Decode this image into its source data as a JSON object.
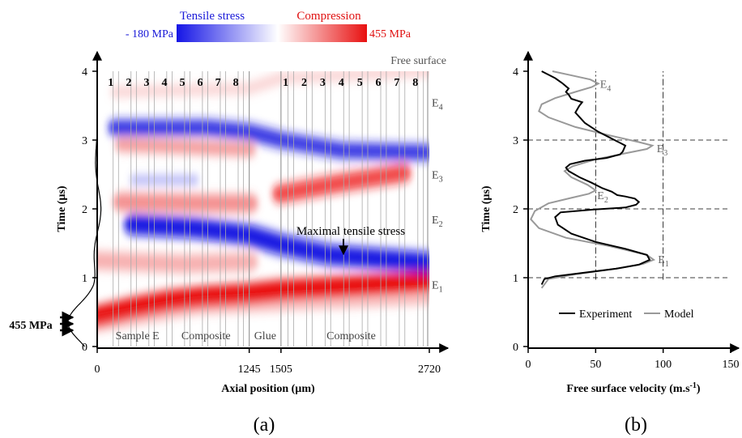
{
  "chart_data": [
    {
      "type": "heatmap",
      "panel_label": "(a)",
      "xlabel": "Axial position (µm)",
      "ylabel": "Time (µs)",
      "xlim": [
        0,
        2720
      ],
      "ylim": [
        0,
        4
      ],
      "x_ticks": [
        "0",
        "1245",
        "1505",
        "2720"
      ],
      "x_tick_values": [
        0,
        1245,
        1505,
        2720
      ],
      "y_ticks": [
        "0",
        "1",
        "2",
        "3",
        "4"
      ],
      "y_tick_values": [
        0,
        1,
        2,
        3,
        4
      ],
      "colorbar": {
        "min_label": "- 180 MPa",
        "max_label": "455 MPa",
        "tensile_label": "Tensile stress",
        "compression_label": "Compression",
        "min_value": -180,
        "max_value": 455,
        "tensile_color": "#1010e0",
        "compression_color": "#ee1010"
      },
      "layer_numbers": [
        "1",
        "2",
        "3",
        "4",
        "5",
        "6",
        "7",
        "8",
        "1",
        "2",
        "3",
        "4",
        "5",
        "6",
        "7",
        "8"
      ],
      "regions": [
        "Sample E",
        "Composite",
        "Glue",
        "Composite"
      ],
      "free_surface_label": "Free surface",
      "echo_labels": [
        {
          "label": "E",
          "sub": "1",
          "t": 0.9
        },
        {
          "label": "E",
          "sub": "2",
          "t": 1.85
        },
        {
          "label": "E",
          "sub": "3",
          "t": 2.5
        },
        {
          "label": "E",
          "sub": "4",
          "t": 3.55
        }
      ],
      "annotation": "Maximal tensile stress",
      "input_pulse_label": "455 MPa",
      "input_pulse_peak_time": 0.35
    },
    {
      "type": "line",
      "panel_label": "(b)",
      "xlabel": "Free surface velocity (m.s",
      "xlabel_sup": "-1",
      "xlabel_close": ")",
      "ylabel": "Time (µs)",
      "xlim": [
        0,
        150
      ],
      "ylim": [
        0,
        4
      ],
      "x_ticks": [
        "0",
        "50",
        "100",
        "150"
      ],
      "y_ticks": [
        "0",
        "1",
        "2",
        "3",
        "4"
      ],
      "legend": {
        "placement": "bottom-center"
      },
      "grid_dash_times": [
        1,
        2,
        3
      ],
      "grid_dash_velocities": [
        50,
        100
      ],
      "echo_labels": [
        {
          "label": "E",
          "sub": "1",
          "v": 95,
          "t": 1.27
        },
        {
          "label": "E",
          "sub": "2",
          "v": 50,
          "t": 2.2
        },
        {
          "label": "E",
          "sub": "3",
          "v": 94,
          "t": 2.88
        },
        {
          "label": "E",
          "sub": "4",
          "v": 52,
          "t": 3.82
        }
      ],
      "series": [
        {
          "name": "Experiment",
          "color": "#000000",
          "points": [
            [
              10,
              0.9
            ],
            [
              12,
              0.98
            ],
            [
              20,
              1.02
            ],
            [
              40,
              1.07
            ],
            [
              65,
              1.13
            ],
            [
              82,
              1.19
            ],
            [
              90,
              1.26
            ],
            [
              88,
              1.33
            ],
            [
              72,
              1.42
            ],
            [
              50,
              1.52
            ],
            [
              32,
              1.64
            ],
            [
              22,
              1.77
            ],
            [
              20,
              1.88
            ],
            [
              24,
              1.95
            ],
            [
              48,
              1.99
            ],
            [
              72,
              2.02
            ],
            [
              80,
              2.06
            ],
            [
              82,
              2.1
            ],
            [
              79,
              2.15
            ],
            [
              72,
              2.18
            ],
            [
              66,
              2.2
            ],
            [
              62,
              2.25
            ],
            [
              55,
              2.3
            ],
            [
              47,
              2.38
            ],
            [
              38,
              2.46
            ],
            [
              30,
              2.55
            ],
            [
              28,
              2.6
            ],
            [
              31,
              2.65
            ],
            [
              42,
              2.7
            ],
            [
              58,
              2.74
            ],
            [
              68,
              2.79
            ],
            [
              70,
              2.83
            ],
            [
              72,
              2.92
            ],
            [
              64,
              3.0
            ],
            [
              52,
              3.12
            ],
            [
              42,
              3.25
            ],
            [
              35,
              3.4
            ],
            [
              38,
              3.5
            ],
            [
              40,
              3.55
            ],
            [
              32,
              3.6
            ],
            [
              30,
              3.66
            ],
            [
              28,
              3.7
            ],
            [
              30,
              3.75
            ],
            [
              25,
              3.83
            ],
            [
              20,
              3.9
            ],
            [
              14,
              3.96
            ],
            [
              10,
              4.0
            ]
          ]
        },
        {
          "name": "Model",
          "color": "#999999",
          "points": [
            [
              10,
              0.85
            ],
            [
              15,
              0.98
            ],
            [
              35,
              1.05
            ],
            [
              65,
              1.13
            ],
            [
              85,
              1.2
            ],
            [
              93,
              1.26
            ],
            [
              88,
              1.33
            ],
            [
              60,
              1.46
            ],
            [
              28,
              1.58
            ],
            [
              8,
              1.72
            ],
            [
              2,
              1.85
            ],
            [
              5,
              1.97
            ],
            [
              15,
              2.08
            ],
            [
              32,
              2.16
            ],
            [
              45,
              2.22
            ],
            [
              50,
              2.27
            ],
            [
              44,
              2.35
            ],
            [
              32,
              2.46
            ],
            [
              27,
              2.55
            ],
            [
              33,
              2.62
            ],
            [
              50,
              2.72
            ],
            [
              70,
              2.8
            ],
            [
              88,
              2.87
            ],
            [
              92,
              2.92
            ],
            [
              82,
              2.97
            ],
            [
              60,
              3.07
            ],
            [
              35,
              3.19
            ],
            [
              15,
              3.33
            ],
            [
              8,
              3.42
            ],
            [
              10,
              3.52
            ],
            [
              20,
              3.61
            ],
            [
              35,
              3.7
            ],
            [
              47,
              3.77
            ],
            [
              52,
              3.82
            ],
            [
              46,
              3.88
            ],
            [
              30,
              3.95
            ],
            [
              18,
              4.0
            ]
          ]
        }
      ]
    }
  ]
}
